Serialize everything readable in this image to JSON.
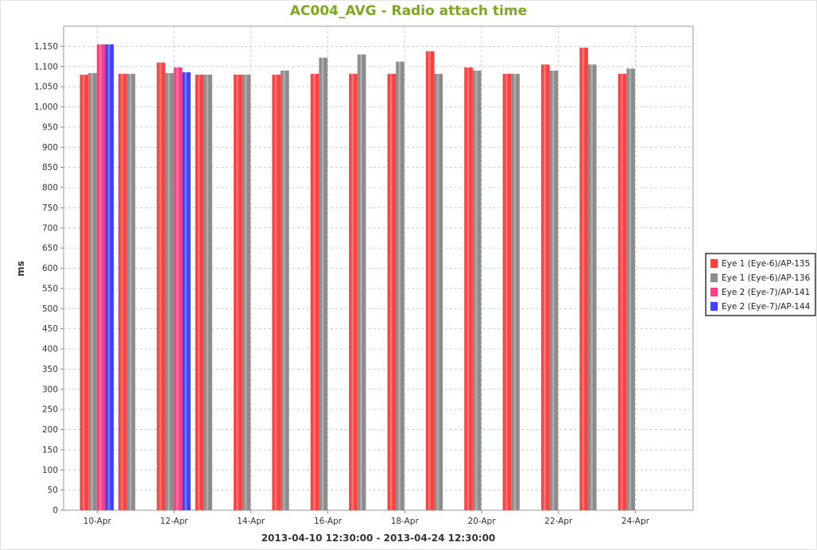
{
  "chart_data": {
    "type": "bar",
    "title": "AC004_AVG - Radio attach time",
    "xlabel": "2013-04-10 12:30:00 - 2013-04-24 12:30:00",
    "ylabel": "ms",
    "ylim": [
      0,
      1200
    ],
    "y_ticks": [
      0,
      50,
      100,
      150,
      200,
      250,
      300,
      350,
      400,
      450,
      500,
      550,
      600,
      650,
      700,
      750,
      800,
      850,
      900,
      950,
      1000,
      1050,
      1100,
      1150
    ],
    "y_tick_labels": [
      "0",
      "50",
      "100",
      "150",
      "200",
      "250",
      "300",
      "350",
      "400",
      "450",
      "500",
      "550",
      "600",
      "650",
      "700",
      "750",
      "800",
      "850",
      "900",
      "950",
      "1,000",
      "1,050",
      "1,100",
      "1,150"
    ],
    "x_tick_labels": [
      "10-Apr",
      "12-Apr",
      "14-Apr",
      "16-Apr",
      "18-Apr",
      "20-Apr",
      "22-Apr",
      "24-Apr"
    ],
    "x_tick_days": [
      10,
      12,
      14,
      16,
      18,
      20,
      22,
      24
    ],
    "x_range_days": [
      9.125,
      25.5
    ],
    "grid": true,
    "legend_position": "right",
    "title_color": "#7ba81e",
    "series": [
      {
        "name": "Eye 1 (Eye-6)/AP-135",
        "color": "#ff4040",
        "points": [
          {
            "day": 10,
            "value": 1080
          },
          {
            "day": 11,
            "value": 1082
          },
          {
            "day": 12,
            "value": 1110
          },
          {
            "day": 13,
            "value": 1080
          },
          {
            "day": 14,
            "value": 1080
          },
          {
            "day": 15,
            "value": 1080
          },
          {
            "day": 16,
            "value": 1082
          },
          {
            "day": 17,
            "value": 1082
          },
          {
            "day": 18,
            "value": 1082
          },
          {
            "day": 19,
            "value": 1138
          },
          {
            "day": 20,
            "value": 1098
          },
          {
            "day": 21,
            "value": 1082
          },
          {
            "day": 22,
            "value": 1105
          },
          {
            "day": 23,
            "value": 1147
          },
          {
            "day": 24,
            "value": 1082
          }
        ]
      },
      {
        "name": "Eye 1 (Eye-6)/AP-136",
        "color": "#8c8c8c",
        "points": [
          {
            "day": 10,
            "value": 1084
          },
          {
            "day": 11,
            "value": 1082
          },
          {
            "day": 12,
            "value": 1084
          },
          {
            "day": 13,
            "value": 1080
          },
          {
            "day": 14,
            "value": 1080
          },
          {
            "day": 15,
            "value": 1090
          },
          {
            "day": 16,
            "value": 1122
          },
          {
            "day": 17,
            "value": 1130
          },
          {
            "day": 18,
            "value": 1112
          },
          {
            "day": 19,
            "value": 1082
          },
          {
            "day": 20,
            "value": 1090
          },
          {
            "day": 21,
            "value": 1082
          },
          {
            "day": 22,
            "value": 1090
          },
          {
            "day": 23,
            "value": 1105
          },
          {
            "day": 24,
            "value": 1095
          }
        ]
      },
      {
        "name": "Eye 2 (Eye-7)/AP-141",
        "color": "#ff4080",
        "points": [
          {
            "day": 10,
            "value": 1155
          },
          {
            "day": 12,
            "value": 1098
          }
        ]
      },
      {
        "name": "Eye 2 (Eye-7)/AP-144",
        "color": "#4040ff",
        "points": [
          {
            "day": 10,
            "value": 1155
          },
          {
            "day": 12,
            "value": 1086
          }
        ]
      }
    ]
  }
}
